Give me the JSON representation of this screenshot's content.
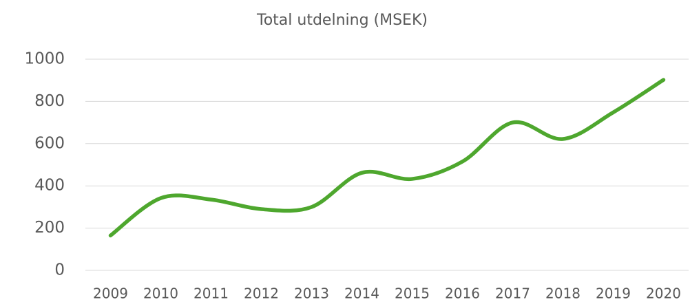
{
  "chart_data": {
    "type": "line",
    "title": "Total utdelning (MSEK)",
    "categories": [
      "2009",
      "2010",
      "2011",
      "2012",
      "2013",
      "2014",
      "2015",
      "2016",
      "2017",
      "2018",
      "2019",
      "2020"
    ],
    "series": [
      {
        "name": "Total utdelning",
        "color": "#4ea72e",
        "values": [
          165,
          342,
          335,
          290,
          300,
          462,
          433,
          515,
          700,
          622,
          748,
          902
        ]
      }
    ],
    "ylim": [
      0,
      1000
    ],
    "yticks": [
      0,
      200,
      400,
      600,
      800,
      1000
    ],
    "grid": true,
    "smooth": true
  }
}
